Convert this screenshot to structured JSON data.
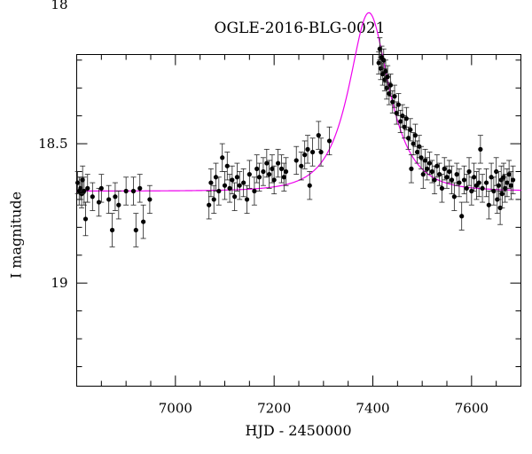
{
  "chart_data": {
    "type": "scatter",
    "title": "OGLE-2016-BLG-0021",
    "xlabel": "HJD - 2450000",
    "ylabel": "I magnitude",
    "xlim": [
      6800,
      7700
    ],
    "ylim": [
      19.37,
      18.18
    ],
    "y_inverted": true,
    "x_ticks": [
      7000,
      7200,
      7400,
      7600
    ],
    "y_ticks": [
      18,
      18.5,
      19
    ],
    "grid": false,
    "legend": "none",
    "series": [
      {
        "type": "points_with_errorbars",
        "color": "#000000",
        "points": [
          {
            "x": 6802,
            "y": 18.64,
            "e": 0.04
          },
          {
            "x": 6805,
            "y": 18.67,
            "e": 0.05
          },
          {
            "x": 6808,
            "y": 18.66,
            "e": 0.04
          },
          {
            "x": 6810,
            "y": 18.68,
            "e": 0.05
          },
          {
            "x": 6812,
            "y": 18.63,
            "e": 0.05
          },
          {
            "x": 6815,
            "y": 18.67,
            "e": 0.05
          },
          {
            "x": 6818,
            "y": 18.77,
            "e": 0.06
          },
          {
            "x": 6822,
            "y": 18.66,
            "e": 0.05
          },
          {
            "x": 6832,
            "y": 18.69,
            "e": 0.05
          },
          {
            "x": 6845,
            "y": 18.71,
            "e": 0.05
          },
          {
            "x": 6850,
            "y": 18.66,
            "e": 0.05
          },
          {
            "x": 6865,
            "y": 18.7,
            "e": 0.05
          },
          {
            "x": 6872,
            "y": 18.81,
            "e": 0.06
          },
          {
            "x": 6878,
            "y": 18.69,
            "e": 0.05
          },
          {
            "x": 6885,
            "y": 18.72,
            "e": 0.05
          },
          {
            "x": 6900,
            "y": 18.67,
            "e": 0.05
          },
          {
            "x": 6915,
            "y": 18.67,
            "e": 0.05
          },
          {
            "x": 6920,
            "y": 18.81,
            "e": 0.06
          },
          {
            "x": 6928,
            "y": 18.66,
            "e": 0.05
          },
          {
            "x": 6935,
            "y": 18.78,
            "e": 0.06
          },
          {
            "x": 6948,
            "y": 18.7,
            "e": 0.05
          },
          {
            "x": 7068,
            "y": 18.72,
            "e": 0.05
          },
          {
            "x": 7072,
            "y": 18.64,
            "e": 0.05
          },
          {
            "x": 7078,
            "y": 18.7,
            "e": 0.05
          },
          {
            "x": 7082,
            "y": 18.62,
            "e": 0.05
          },
          {
            "x": 7088,
            "y": 18.67,
            "e": 0.05
          },
          {
            "x": 7095,
            "y": 18.55,
            "e": 0.05
          },
          {
            "x": 7100,
            "y": 18.65,
            "e": 0.05
          },
          {
            "x": 7105,
            "y": 18.58,
            "e": 0.05
          },
          {
            "x": 7110,
            "y": 18.66,
            "e": 0.05
          },
          {
            "x": 7115,
            "y": 18.63,
            "e": 0.05
          },
          {
            "x": 7120,
            "y": 18.69,
            "e": 0.05
          },
          {
            "x": 7125,
            "y": 18.62,
            "e": 0.05
          },
          {
            "x": 7130,
            "y": 18.65,
            "e": 0.05
          },
          {
            "x": 7138,
            "y": 18.64,
            "e": 0.05
          },
          {
            "x": 7145,
            "y": 18.7,
            "e": 0.05
          },
          {
            "x": 7150,
            "y": 18.61,
            "e": 0.05
          },
          {
            "x": 7160,
            "y": 18.67,
            "e": 0.05
          },
          {
            "x": 7165,
            "y": 18.59,
            "e": 0.05
          },
          {
            "x": 7170,
            "y": 18.62,
            "e": 0.05
          },
          {
            "x": 7178,
            "y": 18.6,
            "e": 0.05
          },
          {
            "x": 7185,
            "y": 18.57,
            "e": 0.05
          },
          {
            "x": 7190,
            "y": 18.61,
            "e": 0.05
          },
          {
            "x": 7196,
            "y": 18.59,
            "e": 0.05
          },
          {
            "x": 7200,
            "y": 18.63,
            "e": 0.05
          },
          {
            "x": 7208,
            "y": 18.57,
            "e": 0.05
          },
          {
            "x": 7215,
            "y": 18.59,
            "e": 0.05
          },
          {
            "x": 7220,
            "y": 18.62,
            "e": 0.05
          },
          {
            "x": 7224,
            "y": 18.6,
            "e": 0.05
          },
          {
            "x": 7245,
            "y": 18.56,
            "e": 0.05
          },
          {
            "x": 7255,
            "y": 18.58,
            "e": 0.05
          },
          {
            "x": 7262,
            "y": 18.54,
            "e": 0.05
          },
          {
            "x": 7268,
            "y": 18.52,
            "e": 0.05
          },
          {
            "x": 7272,
            "y": 18.65,
            "e": 0.05
          },
          {
            "x": 7278,
            "y": 18.53,
            "e": 0.05
          },
          {
            "x": 7290,
            "y": 18.47,
            "e": 0.05
          },
          {
            "x": 7295,
            "y": 18.53,
            "e": 0.05
          },
          {
            "x": 7312,
            "y": 18.49,
            "e": 0.05
          },
          {
            "x": 7412,
            "y": 18.21,
            "e": 0.04
          },
          {
            "x": 7414,
            "y": 18.16,
            "e": 0.04
          },
          {
            "x": 7416,
            "y": 18.23,
            "e": 0.04
          },
          {
            "x": 7418,
            "y": 18.19,
            "e": 0.04
          },
          {
            "x": 7420,
            "y": 18.25,
            "e": 0.04
          },
          {
            "x": 7422,
            "y": 18.2,
            "e": 0.04
          },
          {
            "x": 7424,
            "y": 18.27,
            "e": 0.04
          },
          {
            "x": 7426,
            "y": 18.24,
            "e": 0.04
          },
          {
            "x": 7428,
            "y": 18.3,
            "e": 0.04
          },
          {
            "x": 7430,
            "y": 18.26,
            "e": 0.04
          },
          {
            "x": 7433,
            "y": 18.32,
            "e": 0.04
          },
          {
            "x": 7436,
            "y": 18.29,
            "e": 0.04
          },
          {
            "x": 7440,
            "y": 18.35,
            "e": 0.04
          },
          {
            "x": 7444,
            "y": 18.33,
            "e": 0.04
          },
          {
            "x": 7448,
            "y": 18.39,
            "e": 0.04
          },
          {
            "x": 7452,
            "y": 18.36,
            "e": 0.04
          },
          {
            "x": 7456,
            "y": 18.42,
            "e": 0.04
          },
          {
            "x": 7460,
            "y": 18.4,
            "e": 0.04
          },
          {
            "x": 7464,
            "y": 18.44,
            "e": 0.04
          },
          {
            "x": 7468,
            "y": 18.41,
            "e": 0.04
          },
          {
            "x": 7472,
            "y": 18.48,
            "e": 0.04
          },
          {
            "x": 7476,
            "y": 18.45,
            "e": 0.04
          },
          {
            "x": 7478,
            "y": 18.59,
            "e": 0.05
          },
          {
            "x": 7482,
            "y": 18.5,
            "e": 0.04
          },
          {
            "x": 7486,
            "y": 18.47,
            "e": 0.04
          },
          {
            "x": 7490,
            "y": 18.53,
            "e": 0.04
          },
          {
            "x": 7494,
            "y": 18.51,
            "e": 0.04
          },
          {
            "x": 7498,
            "y": 18.55,
            "e": 0.04
          },
          {
            "x": 7502,
            "y": 18.61,
            "e": 0.05
          },
          {
            "x": 7506,
            "y": 18.56,
            "e": 0.04
          },
          {
            "x": 7510,
            "y": 18.59,
            "e": 0.04
          },
          {
            "x": 7515,
            "y": 18.57,
            "e": 0.04
          },
          {
            "x": 7520,
            "y": 18.6,
            "e": 0.04
          },
          {
            "x": 7525,
            "y": 18.63,
            "e": 0.05
          },
          {
            "x": 7530,
            "y": 18.58,
            "e": 0.04
          },
          {
            "x": 7535,
            "y": 18.61,
            "e": 0.04
          },
          {
            "x": 7540,
            "y": 18.66,
            "e": 0.05
          },
          {
            "x": 7545,
            "y": 18.59,
            "e": 0.04
          },
          {
            "x": 7550,
            "y": 18.62,
            "e": 0.04
          },
          {
            "x": 7555,
            "y": 18.6,
            "e": 0.04
          },
          {
            "x": 7560,
            "y": 18.63,
            "e": 0.05
          },
          {
            "x": 7565,
            "y": 18.69,
            "e": 0.05
          },
          {
            "x": 7570,
            "y": 18.61,
            "e": 0.04
          },
          {
            "x": 7575,
            "y": 18.64,
            "e": 0.05
          },
          {
            "x": 7580,
            "y": 18.76,
            "e": 0.05
          },
          {
            "x": 7585,
            "y": 18.63,
            "e": 0.05
          },
          {
            "x": 7590,
            "y": 18.66,
            "e": 0.05
          },
          {
            "x": 7595,
            "y": 18.6,
            "e": 0.05
          },
          {
            "x": 7600,
            "y": 18.67,
            "e": 0.05
          },
          {
            "x": 7605,
            "y": 18.62,
            "e": 0.05
          },
          {
            "x": 7610,
            "y": 18.65,
            "e": 0.05
          },
          {
            "x": 7615,
            "y": 18.64,
            "e": 0.05
          },
          {
            "x": 7618,
            "y": 18.52,
            "e": 0.05
          },
          {
            "x": 7622,
            "y": 18.66,
            "e": 0.05
          },
          {
            "x": 7630,
            "y": 18.64,
            "e": 0.05
          },
          {
            "x": 7635,
            "y": 18.72,
            "e": 0.05
          },
          {
            "x": 7640,
            "y": 18.62,
            "e": 0.05
          },
          {
            "x": 7645,
            "y": 18.67,
            "e": 0.05
          },
          {
            "x": 7650,
            "y": 18.6,
            "e": 0.05
          },
          {
            "x": 7652,
            "y": 18.7,
            "e": 0.05
          },
          {
            "x": 7655,
            "y": 18.65,
            "e": 0.05
          },
          {
            "x": 7658,
            "y": 18.73,
            "e": 0.06
          },
          {
            "x": 7660,
            "y": 18.63,
            "e": 0.05
          },
          {
            "x": 7662,
            "y": 18.68,
            "e": 0.05
          },
          {
            "x": 7665,
            "y": 18.62,
            "e": 0.05
          },
          {
            "x": 7668,
            "y": 18.66,
            "e": 0.05
          },
          {
            "x": 7672,
            "y": 18.64,
            "e": 0.05
          },
          {
            "x": 7676,
            "y": 18.61,
            "e": 0.05
          },
          {
            "x": 7680,
            "y": 18.65,
            "e": 0.05
          },
          {
            "x": 7684,
            "y": 18.63,
            "e": 0.05
          }
        ]
      },
      {
        "type": "model_curve",
        "color": "#ee00ee",
        "baseline": 18.67,
        "peak": 18.03,
        "t0": 7392,
        "tE": 62
      }
    ]
  }
}
